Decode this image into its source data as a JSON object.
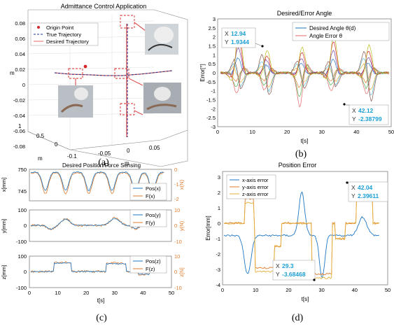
{
  "colors": {
    "blue": "#1f77c4",
    "orange": "#e07a2a",
    "yellow": "#e3b23c",
    "purple": "#7a3f9d",
    "red": "#d62728",
    "navy": "#1f2f8f",
    "pink": "#e06666",
    "cyan": "#1a9fd6"
  },
  "panels": {
    "a": {
      "caption": "(a)",
      "title": "Admittance Control Application",
      "zlabel": "m",
      "ylabel": "m",
      "xlabel": "m",
      "zticks": [
        "0.08",
        "0.06",
        "0.04",
        "0.02",
        "0",
        "-0.02",
        "-0.04",
        "-0.06",
        "-0.08"
      ],
      "yticks": [
        "1",
        "0.5",
        "0"
      ],
      "xticks": [
        "-0.1",
        "-0.05",
        "0",
        "0.05"
      ],
      "legend": [
        "Origin Point",
        "True Trajectory",
        "Desired Trajectory"
      ]
    },
    "b": {
      "caption": "(b)",
      "title": "Desired/Error Angle",
      "ylabel": "Error[°]",
      "xlabel": "t[s]",
      "yticks": [
        "3",
        "2.5",
        "2",
        "1.5",
        "1",
        "0.5",
        "0",
        "-0.5",
        "-1",
        "-1.5",
        "-2",
        "-2.5",
        "-3"
      ],
      "xticks": [
        "0",
        "10",
        "20",
        "30",
        "40",
        "50"
      ],
      "legend": [
        "Desired Angle θ(d)",
        "Angle Error θ"
      ],
      "tip1": {
        "xk": "X",
        "xv": "12.94",
        "yk": "Y",
        "yv": "1.9344"
      },
      "tip2": {
        "xk": "X",
        "xv": "42.12",
        "yk": "Y",
        "yv": "-2.38799"
      }
    },
    "c": {
      "caption": "(c)",
      "title": "Desired Position/Force Sensing",
      "xlabel": "t[s]",
      "top": {
        "ylabel": "x[mm]",
        "y2label": "x(N)",
        "yticks": [
          "750",
          "745"
        ],
        "y2ticks": [
          "0",
          "-1",
          "-2"
        ],
        "legend": [
          "Pos(x)",
          "F(x)"
        ]
      },
      "mid": {
        "ylabel": "y[mm]",
        "y2label": "y(N)",
        "yticks": [
          "100",
          "0",
          "-100"
        ],
        "y2ticks": [
          "10",
          "0",
          "-10"
        ],
        "legend": [
          "Pos(y)",
          "F(y)"
        ]
      },
      "bot": {
        "ylabel": "z[mm]",
        "y2label": "z[N]",
        "yticks": [
          "100",
          "0",
          "-100"
        ],
        "y2ticks": [
          "10",
          "0",
          "-10"
        ],
        "legend": [
          "Pos(z)",
          "F(z)"
        ]
      },
      "xticks": [
        "0",
        "10",
        "20",
        "30",
        "40",
        "50"
      ]
    },
    "d": {
      "caption": "(d)",
      "title": "Position Error",
      "ylabel": "Error[mm]",
      "xlabel": "t[s]",
      "yticks": [
        "3",
        "2",
        "1",
        "0",
        "-1",
        "-2",
        "-3",
        "-4"
      ],
      "xticks": [
        "0",
        "10",
        "20",
        "30",
        "40",
        "50"
      ],
      "legend": [
        "x-axis error",
        "y-axis error",
        "z-axis error"
      ],
      "tip1": {
        "xk": "X",
        "xv": "42.04",
        "yk": "Y",
        "yv": "2.39611"
      },
      "tip2": {
        "xk": "X",
        "xv": "29.3",
        "yk": "Y",
        "yv": "-3.68468"
      }
    }
  },
  "chart_data": [
    {
      "type": "line",
      "title": "Desired/Error Angle",
      "xlabel": "t[s]",
      "ylabel": "Error[°]",
      "xlim": [
        0,
        50
      ],
      "ylim": [
        -3,
        3
      ],
      "series": [
        {
          "name": "Desired Angle θ(d)"
        },
        {
          "name": "Angle Error θ"
        }
      ],
      "points": [
        {
          "x": 12.94,
          "y": 1.9344
        },
        {
          "x": 42.12,
          "y": -2.38799
        }
      ]
    },
    {
      "type": "line",
      "title": "Desired Position/Force Sensing",
      "xlabel": "t[s]",
      "xlim": [
        0,
        50
      ],
      "series": [
        {
          "name": "Pos(x)"
        },
        {
          "name": "F(x)"
        },
        {
          "name": "Pos(y)"
        },
        {
          "name": "F(y)"
        },
        {
          "name": "Pos(z)"
        },
        {
          "name": "F(z)"
        }
      ]
    },
    {
      "type": "line",
      "title": "Position Error",
      "xlabel": "t[s]",
      "ylabel": "Error[mm]",
      "xlim": [
        0,
        50
      ],
      "ylim": [
        -4,
        3
      ],
      "series": [
        {
          "name": "x-axis error"
        },
        {
          "name": "y-axis error"
        },
        {
          "name": "z-axis error"
        }
      ],
      "points": [
        {
          "x": 42.04,
          "y": 2.39611
        },
        {
          "x": 29.3,
          "y": -3.68468
        }
      ]
    }
  ]
}
